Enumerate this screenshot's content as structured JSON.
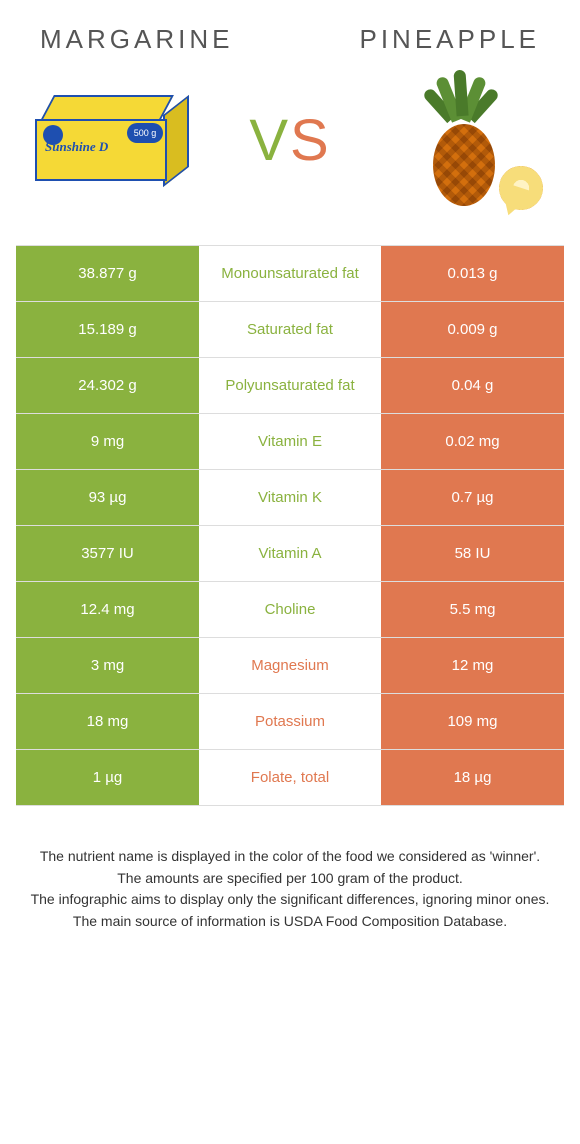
{
  "food_left": {
    "name": "Margarine"
  },
  "food_right": {
    "name": "Pineapple"
  },
  "vs": {
    "v": "V",
    "s": "S"
  },
  "colors": {
    "left_bg": "#8ab23f",
    "right_bg": "#e07850",
    "mid_bg": "#ffffff",
    "left_winner_text": "#8ab23f",
    "right_winner_text": "#e07850",
    "row_border": "#dddddd"
  },
  "table": {
    "rows": [
      {
        "left": "38.877 g",
        "label": "Monounsaturated fat",
        "right": "0.013 g",
        "winner": "left"
      },
      {
        "left": "15.189 g",
        "label": "Saturated fat",
        "right": "0.009 g",
        "winner": "left"
      },
      {
        "left": "24.302 g",
        "label": "Polyunsaturated fat",
        "right": "0.04 g",
        "winner": "left"
      },
      {
        "left": "9 mg",
        "label": "Vitamin E",
        "right": "0.02 mg",
        "winner": "left"
      },
      {
        "left": "93 µg",
        "label": "Vitamin K",
        "right": "0.7 µg",
        "winner": "left"
      },
      {
        "left": "3577 IU",
        "label": "Vitamin A",
        "right": "58 IU",
        "winner": "left"
      },
      {
        "left": "12.4 mg",
        "label": "Choline",
        "right": "5.5 mg",
        "winner": "left"
      },
      {
        "left": "3 mg",
        "label": "Magnesium",
        "right": "12 mg",
        "winner": "right"
      },
      {
        "left": "18 mg",
        "label": "Potassium",
        "right": "109 mg",
        "winner": "right"
      },
      {
        "left": "1 µg",
        "label": "Folate, total",
        "right": "18 µg",
        "winner": "right"
      }
    ]
  },
  "footnotes": [
    "The nutrient name is displayed in the color of the food we considered as 'winner'.",
    "The amounts are specified per 100 gram of the product.",
    "The infographic aims to display only the significant differences, ignoring minor ones.",
    "The main source of information is USDA Food Composition Database."
  ]
}
